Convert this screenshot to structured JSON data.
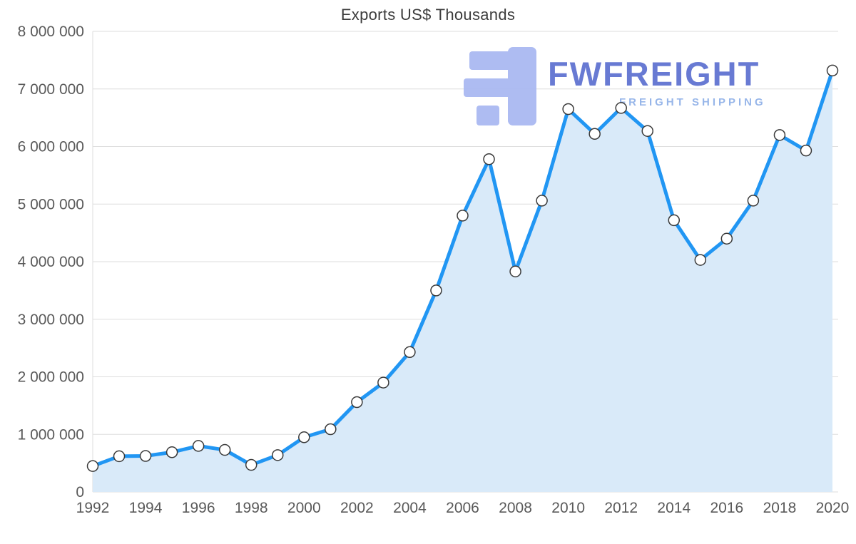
{
  "page": {
    "background": "#ffffff"
  },
  "logo": {
    "brand": "FWFREIGHT",
    "tagline": "FREIGHT SHIPPING",
    "brand_color": "#5c6fd0",
    "tagline_color": "#8fb0e8",
    "glyph_color": "#a8b7f1"
  },
  "chart_data": {
    "type": "line",
    "title": "Exports US$ Thousands",
    "x": [
      1992,
      1993,
      1994,
      1995,
      1996,
      1997,
      1998,
      1999,
      2000,
      2001,
      2002,
      2003,
      2004,
      2005,
      2006,
      2007,
      2008,
      2009,
      2010,
      2011,
      2012,
      2013,
      2014,
      2015,
      2016,
      2017,
      2018,
      2019,
      2020
    ],
    "series": [
      {
        "name": "Exports US$ Thousands",
        "values": [
          450000,
          620000,
          625000,
          690000,
          800000,
          730000,
          470000,
          640000,
          950000,
          1090000,
          1560000,
          1900000,
          2430000,
          3500000,
          4800000,
          5780000,
          3830000,
          5060000,
          6650000,
          6220000,
          6670000,
          6270000,
          4720000,
          4030000,
          4400000,
          5060000,
          6200000,
          5930000,
          7320000
        ]
      }
    ],
    "ylim": [
      0,
      8000000
    ],
    "ytick_step": 1000000,
    "ytick_labels": [
      "0",
      "1 000 000",
      "2 000 000",
      "3 000 000",
      "4 000 000",
      "5 000 000",
      "6 000 000",
      "7 000 000",
      "8 000 000"
    ],
    "xtick_labels": [
      "1992",
      "1994",
      "1996",
      "1998",
      "2000",
      "2002",
      "2004",
      "2006",
      "2008",
      "2010",
      "2012",
      "2014",
      "2016",
      "2018",
      "2020"
    ],
    "grid": true,
    "legend": "none",
    "line_color": "#2196f3",
    "area_fill": "#d9eaf9",
    "grid_color": "#dedede",
    "axis_label_color": "#595959",
    "marker_fill": "#ffffff",
    "marker_stroke": "#3a3a3a"
  }
}
